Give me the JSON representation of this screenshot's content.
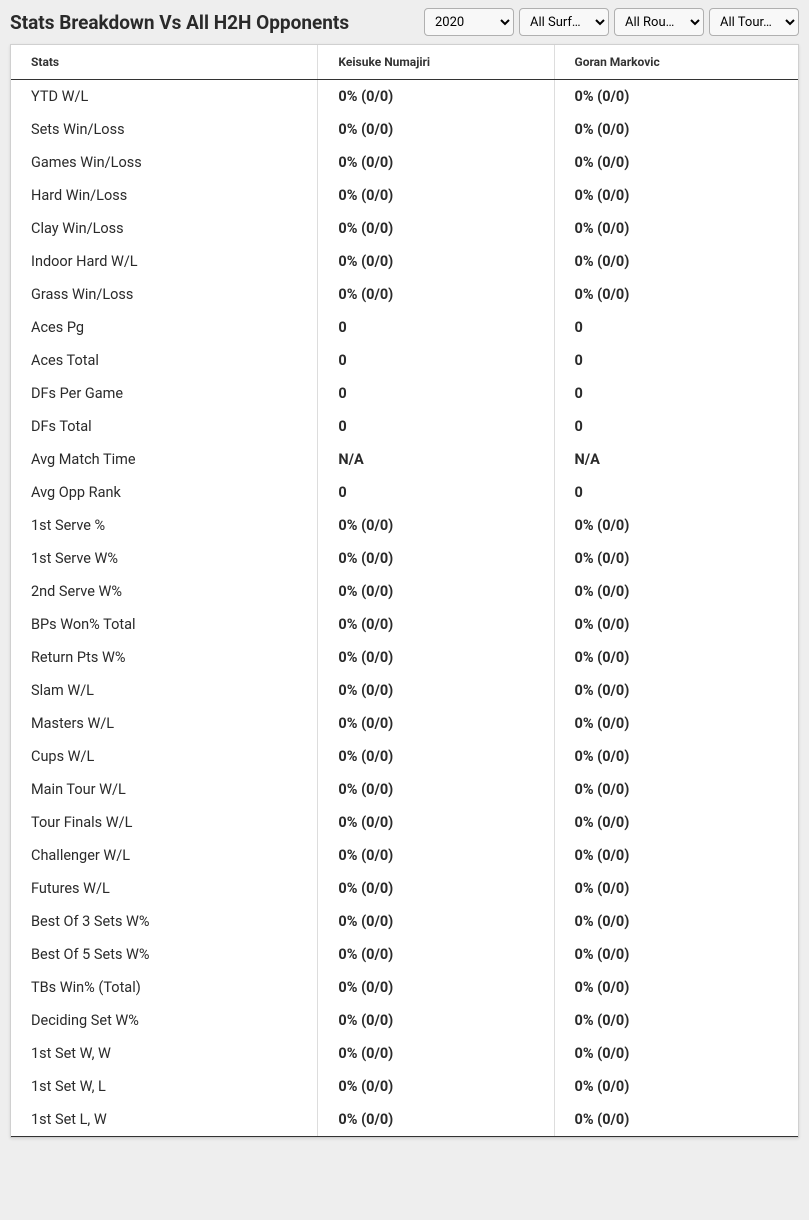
{
  "header": {
    "title": "Stats Breakdown Vs All H2H Opponents"
  },
  "filters": {
    "year": {
      "selected": "2020",
      "options": [
        "2020"
      ]
    },
    "surface": {
      "selected": "All Surf…",
      "options": [
        "All Surf…"
      ]
    },
    "round": {
      "selected": "All Rou…",
      "options": [
        "All Rou…"
      ]
    },
    "tour": {
      "selected": "All Tour…",
      "options": [
        "All Tour…"
      ]
    }
  },
  "table": {
    "columns": [
      "Stats",
      "Keisuke Numajiri",
      "Goran Markovic"
    ],
    "column_widths": [
      "39%",
      "30%",
      "31%"
    ],
    "rows": [
      [
        "YTD W/L",
        "0% (0/0)",
        "0% (0/0)"
      ],
      [
        "Sets Win/Loss",
        "0% (0/0)",
        "0% (0/0)"
      ],
      [
        "Games Win/Loss",
        "0% (0/0)",
        "0% (0/0)"
      ],
      [
        "Hard Win/Loss",
        "0% (0/0)",
        "0% (0/0)"
      ],
      [
        "Clay Win/Loss",
        "0% (0/0)",
        "0% (0/0)"
      ],
      [
        "Indoor Hard W/L",
        "0% (0/0)",
        "0% (0/0)"
      ],
      [
        "Grass Win/Loss",
        "0% (0/0)",
        "0% (0/0)"
      ],
      [
        "Aces Pg",
        "0",
        "0"
      ],
      [
        "Aces Total",
        "0",
        "0"
      ],
      [
        "DFs Per Game",
        "0",
        "0"
      ],
      [
        "DFs Total",
        "0",
        "0"
      ],
      [
        "Avg Match Time",
        "N/A",
        "N/A"
      ],
      [
        "Avg Opp Rank",
        "0",
        "0"
      ],
      [
        "1st Serve %",
        "0% (0/0)",
        "0% (0/0)"
      ],
      [
        "1st Serve W%",
        "0% (0/0)",
        "0% (0/0)"
      ],
      [
        "2nd Serve W%",
        "0% (0/0)",
        "0% (0/0)"
      ],
      [
        "BPs Won% Total",
        "0% (0/0)",
        "0% (0/0)"
      ],
      [
        "Return Pts W%",
        "0% (0/0)",
        "0% (0/0)"
      ],
      [
        "Slam W/L",
        "0% (0/0)",
        "0% (0/0)"
      ],
      [
        "Masters W/L",
        "0% (0/0)",
        "0% (0/0)"
      ],
      [
        "Cups W/L",
        "0% (0/0)",
        "0% (0/0)"
      ],
      [
        "Main Tour W/L",
        "0% (0/0)",
        "0% (0/0)"
      ],
      [
        "Tour Finals W/L",
        "0% (0/0)",
        "0% (0/0)"
      ],
      [
        "Challenger W/L",
        "0% (0/0)",
        "0% (0/0)"
      ],
      [
        "Futures W/L",
        "0% (0/0)",
        "0% (0/0)"
      ],
      [
        "Best Of 3 Sets W%",
        "0% (0/0)",
        "0% (0/0)"
      ],
      [
        "Best Of 5 Sets W%",
        "0% (0/0)",
        "0% (0/0)"
      ],
      [
        "TBs Win% (Total)",
        "0% (0/0)",
        "0% (0/0)"
      ],
      [
        "Deciding Set W%",
        "0% (0/0)",
        "0% (0/0)"
      ],
      [
        "1st Set W, W",
        "0% (0/0)",
        "0% (0/0)"
      ],
      [
        "1st Set W, L",
        "0% (0/0)",
        "0% (0/0)"
      ],
      [
        "1st Set L, W",
        "0% (0/0)",
        "0% (0/0)"
      ]
    ]
  },
  "styling": {
    "background_color": "#eeeeee",
    "table_background": "#ffffff",
    "border_color": "#d0d0d0",
    "header_border_bottom": "#333333",
    "cell_divider_color": "#dddddd",
    "text_color": "#2a2a2a",
    "title_fontsize": 19,
    "header_fontsize": 12,
    "cell_fontsize": 14.5
  }
}
